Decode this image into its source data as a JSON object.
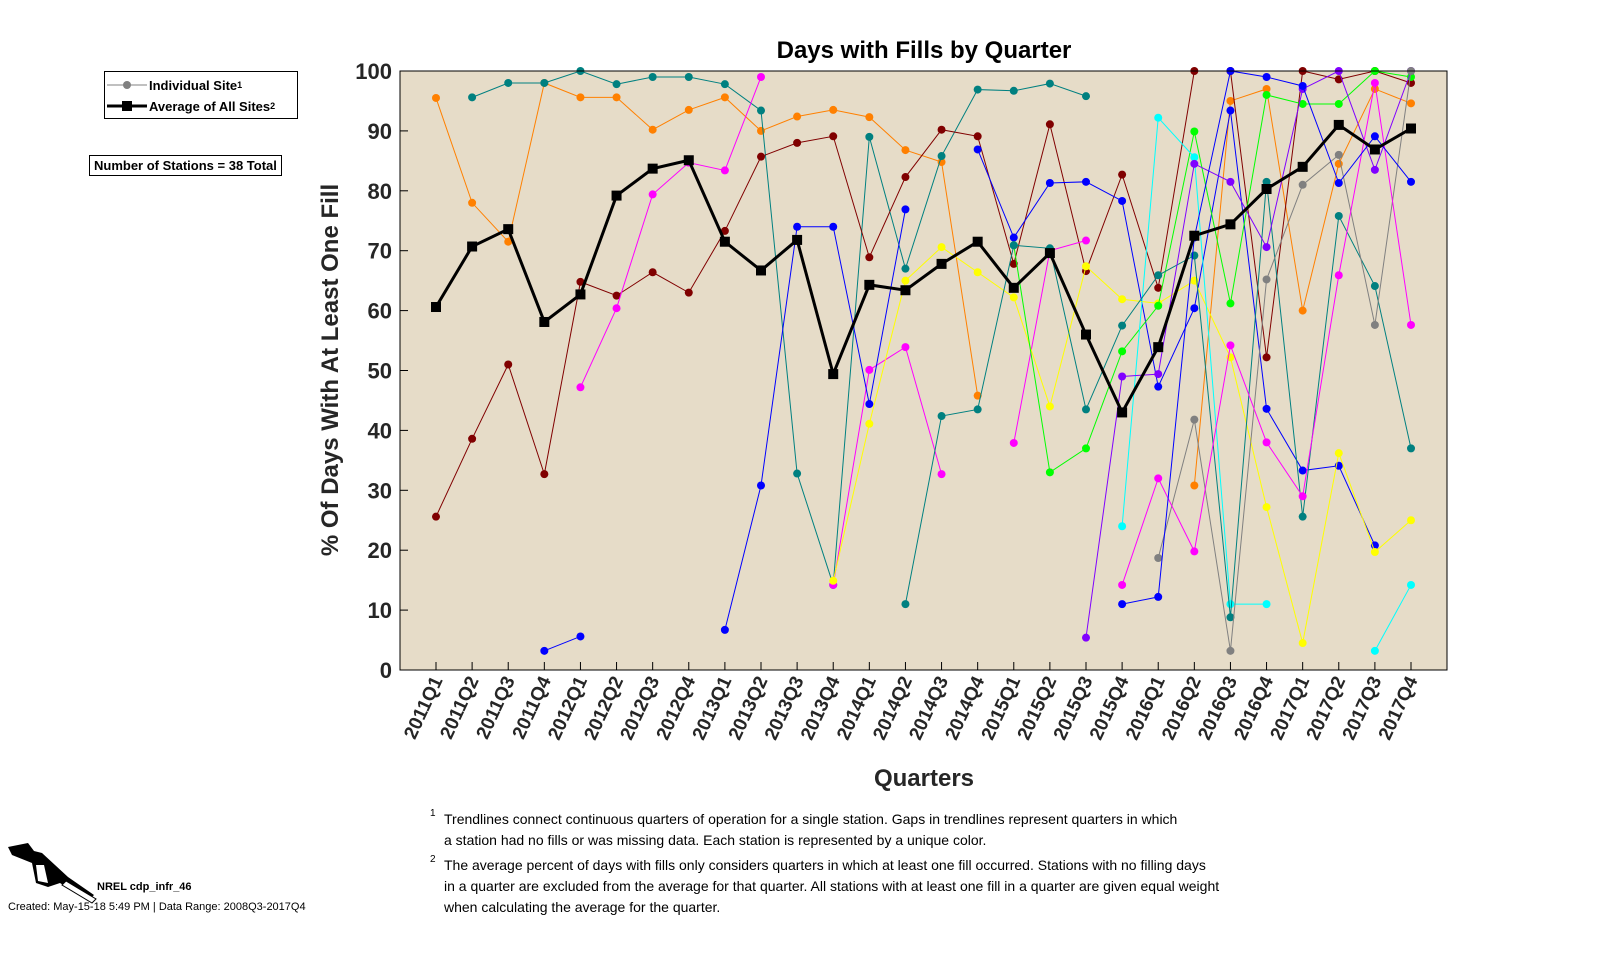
{
  "chart_data": {
    "type": "line",
    "title": "Days with Fills by Quarter",
    "xlabel": "Quarters",
    "ylabel": "% Of Days With At Least One Fill",
    "ylim": [
      0,
      100
    ],
    "yticks": [
      0,
      10,
      20,
      30,
      40,
      50,
      60,
      70,
      80,
      90,
      100
    ],
    "categories": [
      "2011Q1",
      "2011Q2",
      "2011Q3",
      "2011Q4",
      "2012Q1",
      "2012Q2",
      "2012Q3",
      "2012Q4",
      "2013Q1",
      "2013Q2",
      "2013Q3",
      "2013Q4",
      "2014Q1",
      "2014Q2",
      "2014Q3",
      "2014Q4",
      "2015Q1",
      "2015Q2",
      "2015Q3",
      "2015Q4",
      "2016Q1",
      "2016Q2",
      "2016Q3",
      "2016Q4",
      "2017Q1",
      "2017Q2",
      "2017Q3",
      "2017Q4"
    ],
    "average": {
      "name": "Average of All Sites",
      "color": "#000000",
      "values": [
        60.6,
        70.7,
        73.6,
        58.1,
        62.7,
        79.2,
        83.7,
        85.1,
        71.5,
        66.7,
        71.8,
        49.4,
        64.3,
        63.4,
        67.8,
        71.5,
        63.8,
        69.6,
        56.0,
        43.0,
        53.9,
        72.5,
        74.4,
        80.3,
        84.0,
        91.0,
        86.9,
        90.4
      ]
    },
    "series": [
      {
        "name": "site-orange",
        "color": "#ff8000",
        "values": [
          95.5,
          78,
          71.5,
          98,
          95.6,
          95.6,
          90.2,
          93.5,
          95.6,
          90,
          92.4,
          93.5,
          92.3,
          86.8,
          84.8,
          45.8,
          null,
          null,
          null,
          null,
          null,
          30.8,
          95,
          97,
          60,
          84.5,
          97,
          94.6
        ]
      },
      {
        "name": "site-teal",
        "color": "#008080",
        "values": [
          null,
          95.6,
          98,
          98,
          100,
          97.8,
          99,
          99,
          97.8,
          93.4,
          32.8,
          14.2,
          89,
          67,
          85.8,
          96.9,
          96.7,
          97.9,
          95.8,
          null,
          null,
          null,
          null,
          null,
          null,
          null,
          null,
          null
        ]
      },
      {
        "name": "site-darkred",
        "color": "#800000",
        "values": [
          25.6,
          38.6,
          51,
          32.7,
          64.8,
          62.5,
          66.4,
          63,
          73.3,
          85.7,
          88,
          89.1,
          68.9,
          82.3,
          90.2,
          89.1,
          67.8,
          91.1,
          66.6,
          82.7,
          63.8,
          100,
          100,
          52.2,
          100,
          98.6,
          100,
          98
        ]
      },
      {
        "name": "site-magenta",
        "color": "#ff00ff",
        "values": [
          null,
          null,
          null,
          null,
          47.2,
          60.4,
          79.4,
          84.7,
          83.4,
          99,
          null,
          14.2,
          50.1,
          53.9,
          32.7,
          null,
          37.9,
          70,
          71.7,
          null,
          null,
          null,
          null,
          null,
          null,
          null,
          null,
          null
        ]
      },
      {
        "name": "site-blue",
        "color": "#0000ff",
        "values": [
          null,
          null,
          null,
          3.2,
          5.6,
          null,
          null,
          null,
          6.7,
          30.8,
          74,
          74,
          44.4,
          76.9,
          null,
          86.9,
          72.2,
          81.3,
          81.5,
          78.3,
          47.3,
          60.4,
          93.4,
          43.6,
          33.3,
          34.1,
          20.8,
          null
        ]
      },
      {
        "name": "site-yellow",
        "color": "#ffff00",
        "values": [
          null,
          null,
          null,
          null,
          null,
          null,
          null,
          null,
          null,
          null,
          null,
          14.9,
          41.1,
          65,
          70.6,
          66.4,
          62.2,
          44,
          67.4,
          61.9,
          61.2,
          65,
          52.2,
          27.2,
          4.5,
          36.2,
          19.7,
          25
        ]
      },
      {
        "name": "site-green",
        "color": "#00ff00",
        "values": [
          null,
          null,
          null,
          null,
          null,
          null,
          null,
          null,
          null,
          null,
          null,
          null,
          null,
          null,
          null,
          null,
          70.9,
          33,
          37,
          53.2,
          60.8,
          89.9,
          61.2,
          96,
          94.5,
          94.5,
          100,
          99
        ]
      },
      {
        "name": "site-cyan",
        "color": "#00ffff",
        "values": [
          null,
          null,
          null,
          null,
          null,
          null,
          null,
          null,
          null,
          null,
          null,
          null,
          null,
          null,
          null,
          null,
          null,
          null,
          null,
          24,
          92.2,
          85.6,
          11,
          11,
          null,
          null,
          3.2,
          14.2
        ]
      },
      {
        "name": "site-teal2",
        "color": "#008080",
        "values": [
          null,
          null,
          null,
          null,
          null,
          null,
          null,
          null,
          null,
          null,
          null,
          null,
          null,
          11,
          42.4,
          43.5,
          70.9,
          70.4,
          43.5,
          57.5,
          65.9,
          69.2,
          8.8,
          81.5,
          25.6,
          75.8,
          64.1,
          37
        ]
      },
      {
        "name": "site-purple",
        "color": "#8000ff",
        "values": [
          null,
          null,
          null,
          null,
          null,
          null,
          null,
          null,
          null,
          null,
          null,
          null,
          null,
          null,
          null,
          null,
          null,
          null,
          5.4,
          49,
          49.4,
          84.5,
          81.5,
          70.6,
          97,
          100,
          83.5,
          100
        ]
      },
      {
        "name": "site-gray",
        "color": "#808080",
        "values": [
          null,
          null,
          null,
          null,
          null,
          null,
          null,
          null,
          null,
          null,
          null,
          null,
          null,
          null,
          null,
          null,
          null,
          null,
          null,
          null,
          18.7,
          41.8,
          3.2,
          65.2,
          81,
          86,
          57.6,
          100
        ]
      },
      {
        "name": "site-magenta2",
        "color": "#ff00ff",
        "values": [
          null,
          null,
          null,
          null,
          null,
          null,
          null,
          null,
          null,
          null,
          null,
          null,
          null,
          null,
          null,
          null,
          null,
          null,
          null,
          14.2,
          32,
          19.8,
          54.2,
          38,
          29,
          65.9,
          98,
          57.6
        ]
      },
      {
        "name": "site-blue2",
        "color": "#0000ff",
        "values": [
          null,
          null,
          null,
          null,
          null,
          null,
          null,
          null,
          null,
          null,
          null,
          null,
          null,
          null,
          null,
          null,
          null,
          null,
          null,
          11,
          12.2,
          72.2,
          100,
          99,
          97.5,
          81.3,
          89.1,
          81.5
        ]
      }
    ],
    "plot_background": "#e6dcc8"
  },
  "legend": {
    "individual": "Individual Site",
    "individual_sup": "1",
    "average": "Average of All Sites",
    "average_sup": "2"
  },
  "stations_box": "Number of Stations = 38 Total",
  "notes": [
    {
      "sup": "1",
      "lines": [
        "Trendlines connect continuous quarters of operation for a single station. Gaps in trendlines represent quarters in which",
        "a station had no fills or was missing data. Each station is represented by a unique color."
      ]
    },
    {
      "sup": "2",
      "lines": [
        "The average percent of days with fills only considers quarters in which at least one fill occurred. Stations with no filling days",
        "in a quarter are excluded from the average for that quarter. All stations with at least one fill in a quarter are given equal weight",
        "when calculating the average for the quarter."
      ]
    }
  ],
  "credit": "NREL cdp_infr_46",
  "created": "Created: May-15-18  5:49 PM | Data Range: 2008Q3-2017Q4"
}
